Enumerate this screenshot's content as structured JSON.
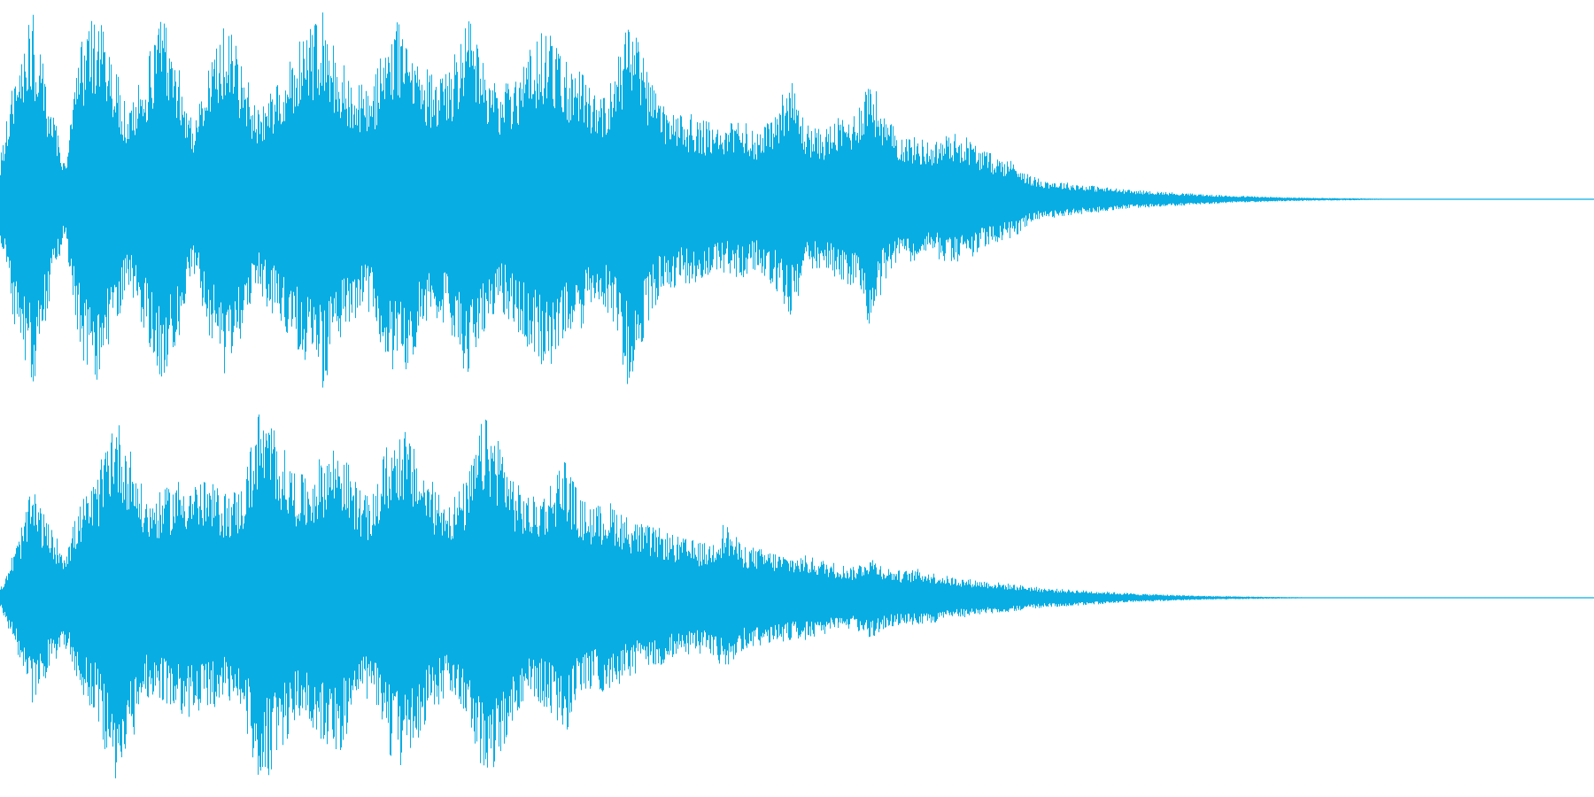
{
  "waveform": {
    "color": "#08ade3",
    "background": "#ffffff",
    "channels": [
      {
        "name": "",
        "envelope": [
          0.22,
          0.72,
          0.98,
          0.55,
          0.2,
          0.82,
          0.98,
          0.72,
          0.45,
          0.7,
          0.98,
          0.75,
          0.38,
          0.72,
          0.96,
          0.7,
          0.48,
          0.62,
          0.72,
          0.9,
          0.98,
          0.75,
          0.62,
          0.58,
          0.85,
          0.98,
          0.72,
          0.65,
          0.7,
          0.98,
          0.7,
          0.58,
          0.68,
          0.8,
          0.9,
          0.72,
          0.68,
          0.55,
          0.62,
          0.98,
          0.72,
          0.5,
          0.45,
          0.44,
          0.4,
          0.38,
          0.42,
          0.36,
          0.45,
          0.65,
          0.4,
          0.36,
          0.42,
          0.45,
          0.66,
          0.42,
          0.34,
          0.32,
          0.3,
          0.35,
          0.33,
          0.26,
          0.22,
          0.2,
          0.12,
          0.1,
          0.09,
          0.08,
          0.07,
          0.06,
          0.05,
          0.045,
          0.04,
          0.035,
          0.03,
          0.025,
          0.02,
          0.018,
          0.015,
          0.012,
          0.01,
          0.008,
          0.007,
          0.006,
          0.005,
          0.004,
          0.003,
          0.0,
          0.0,
          0.0,
          0.0,
          0.0,
          0.0,
          0.0,
          0.0,
          0.0,
          0.0,
          0.0,
          0.0,
          0.0
        ]
      },
      {
        "name": "",
        "envelope": [
          0.05,
          0.28,
          0.58,
          0.38,
          0.25,
          0.5,
          0.62,
          0.98,
          0.8,
          0.52,
          0.55,
          0.62,
          0.62,
          0.6,
          0.55,
          0.58,
          0.98,
          0.9,
          0.7,
          0.62,
          0.75,
          0.82,
          0.62,
          0.5,
          0.8,
          0.9,
          0.72,
          0.58,
          0.52,
          0.62,
          0.95,
          0.85,
          0.6,
          0.52,
          0.58,
          0.75,
          0.52,
          0.48,
          0.5,
          0.42,
          0.38,
          0.36,
          0.32,
          0.3,
          0.28,
          0.4,
          0.28,
          0.26,
          0.24,
          0.22,
          0.22,
          0.2,
          0.18,
          0.16,
          0.22,
          0.16,
          0.14,
          0.15,
          0.13,
          0.11,
          0.1,
          0.09,
          0.08,
          0.07,
          0.06,
          0.05,
          0.045,
          0.04,
          0.035,
          0.03,
          0.025,
          0.02,
          0.018,
          0.015,
          0.012,
          0.01,
          0.008,
          0.007,
          0.006,
          0.005,
          0.004,
          0.003,
          0.0,
          0.0,
          0.0,
          0.0,
          0.0,
          0.0,
          0.0,
          0.0,
          0.0,
          0.0,
          0.0,
          0.0,
          0.0,
          0.0,
          0.0,
          0.0,
          0.0,
          0.0
        ]
      }
    ]
  }
}
